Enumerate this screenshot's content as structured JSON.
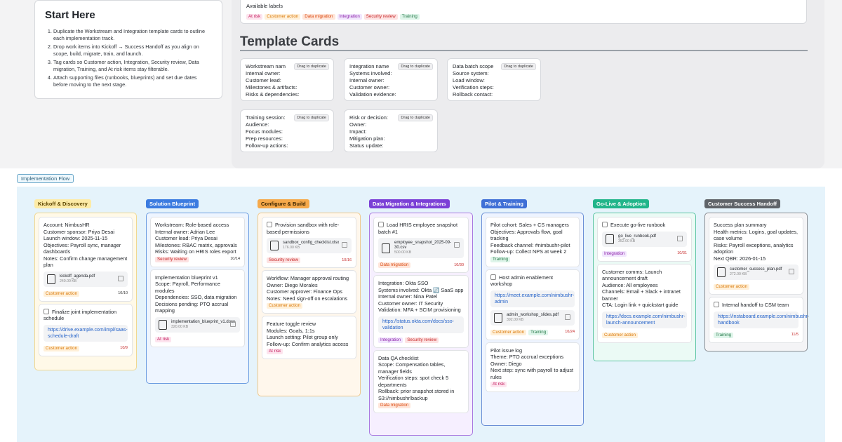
{
  "start": {
    "title": "Start Here",
    "steps": [
      "Duplicate the Workstream and Integration template cards to outline each implementation track.",
      "Drop work items into Kickoff → Success Handoff as you align on scope, build, migrate, train, and launch.",
      "Tag cards so Customer action, Integration, Security review, Data migration, Training, and At risk items stay filterable.",
      "Attach supporting files (runbooks, blueprints) and set due dates before moving to the next stage."
    ]
  },
  "labels": {
    "title": "Available labels",
    "items": [
      "At risk",
      "Customer action",
      "Data migration",
      "Integration",
      "Security review",
      "Training"
    ]
  },
  "templates": {
    "heading": "Template Cards",
    "dup_label": "Drag to duplicate",
    "cards": [
      {
        "rows": [
          "Workstream nam",
          "Internal owner:",
          "Customer lead:",
          "Milestones & artifacts:",
          "Risks & dependencies:"
        ]
      },
      {
        "rows": [
          "Integration name",
          "Systems involved:",
          "Internal owner:",
          "Customer owner:",
          "Validation evidence:"
        ]
      },
      {
        "rows": [
          "Data batch scope",
          "Source system:",
          "Load window:",
          "Verification steps:",
          "Rollback contact:"
        ]
      },
      {
        "rows": [
          "Training session:",
          "Audience:",
          "Focus modules:",
          "Prep resources:",
          "Follow-up actions:"
        ]
      },
      {
        "rows": [
          "Risk or decision:",
          "Owner:",
          "Impact:",
          "Mitigation plan:",
          "Status update:"
        ]
      }
    ]
  },
  "flow": {
    "label": "Implementation Flow",
    "columns": [
      {
        "title": "Kickoff & Discovery"
      },
      {
        "title": "Solution Blueprint"
      },
      {
        "title": "Configure & Build"
      },
      {
        "title": "Data Migration & Integrations"
      },
      {
        "title": "Pilot & Training"
      },
      {
        "title": "Go-Live & Adoption"
      },
      {
        "title": "Customer Success Handoff"
      }
    ]
  },
  "c1": {
    "i1": {
      "text": "Account: NimbusHR\nCustomer sponsor: Priya Desai\nLaunch window: 2025-11-15\nObjectives: Payroll sync, manager dashboards\nNotes: Confirm change management plan",
      "file": "kickoff_agenda.pdf",
      "size": "240.00 KB",
      "tag": "Customer action",
      "date": "10/10"
    },
    "i2": {
      "text": "Finalize joint implementation schedule",
      "link": "https://drive.example.com/impl/saas-schedule-draft",
      "tag": "Customer action",
      "date": "10/9"
    }
  },
  "c2": {
    "i1": {
      "text": "Workstream: Role-based access\nInternal owner: Adrian Lee\nCustomer lead: Priya Desai\nMilestones: RBAC matrix, approvals\nRisks: Waiting on HRIS roles export",
      "tag": "Security review",
      "date": "10/14"
    },
    "i2": {
      "text": "Implementation blueprint v1\nScope: Payroll, Performance modules\nDependencies: SSO, data migration\nDecisions pending: PTO accrual mapping",
      "file": "implementation_blueprint_v1.docx",
      "size": "320.00 KB",
      "tag": "At risk"
    }
  },
  "c3": {
    "i1": {
      "text": "Provision sandbox with role-based permissions",
      "file": "sandbox_config_checklist.xlsx",
      "size": "176.00 KB",
      "tag": "Security review",
      "date": "10/16"
    },
    "i2": {
      "text": "Workflow: Manager approval routing\nOwner: Diego Morales\nCustomer approver: Finance Ops\nNotes: Need sign-off on escalations",
      "tag": "Customer action"
    },
    "i3": {
      "text": "Feature toggle review\nModules: Goals, 1:1s\nLaunch setting: Pilot group only\nFollow-up: Confirm analytics access",
      "tag": "At risk"
    }
  },
  "c4": {
    "i1": {
      "text": "Load HRIS employee snapshot batch #1",
      "file": "employee_snapshot_2025-09-30.csv",
      "size": "500.00 KB",
      "tag": "Data migration",
      "date": "10/30"
    },
    "i2": {
      "text": "Integration: Okta SSO\nSystems involved: Okta 🔄 SaaS app\nInternal owner: Nina Patel\nCustomer owner: IT Security\nValidation: MFA + SCIM provisioning",
      "link": "https://status.okta.com/docs/sso-validation",
      "tag1": "Integration",
      "tag2": "Security review"
    },
    "i3": {
      "text": "Data QA checklist\nScope: Compensation tables, manager fields\nVerification steps: spot check 5 departments\nRollback: prior snapshot stored in S3://nimbushr/backup",
      "tag": "Data migration"
    }
  },
  "c5": {
    "i1": {
      "text": "Pilot cohort: Sales + CS managers\nObjectives: Approvals flow, goal tracking\nFeedback channel: #nimbushr-pilot\nFollow-up: Collect NPS at week 2",
      "tag": "Training"
    },
    "i2": {
      "text": "Host admin enablement workshop",
      "link": "https://meet.example.com/nimbushr-admin",
      "file": "admin_workshop_slides.pdf",
      "size": "392.00 KB",
      "tag1": "Customer action",
      "tag2": "Training",
      "date": "10/24"
    },
    "i3": {
      "text": "Pilot issue log\nTheme: PTO accrual exceptions\nOwner: Diego\nNext step: sync with payroll to adjust rules",
      "tag": "At risk"
    }
  },
  "c6": {
    "i1": {
      "text": "Execute go-live runbook",
      "file": "go_live_runbook.pdf",
      "size": "352.00 KB",
      "tag": "Integration",
      "date": "10/31"
    },
    "i2": {
      "text": "Customer comms: Launch announcement draft\nAudience: All employees\nChannels: Email + Slack + intranet banner\nCTA: Login link + quickstart guide",
      "link": "https://docs.example.com/nimbushr-launch-announcement",
      "tag": "Customer action"
    }
  },
  "c7": {
    "i1": {
      "text": "Success plan summary\nHealth metrics: Logins, goal updates, case volume\nRisks: Payroll exceptions, analytics adoption\nNext QBR: 2026-01-15",
      "file": "customer_success_plan.pdf",
      "size": "272.00 KB",
      "tag": "Customer action"
    },
    "i2": {
      "text": "Internal handoff to CSM team",
      "link": "https://instaboard.example.com/nimbushr-handbook",
      "tag": "Training",
      "date": "11/5"
    }
  }
}
